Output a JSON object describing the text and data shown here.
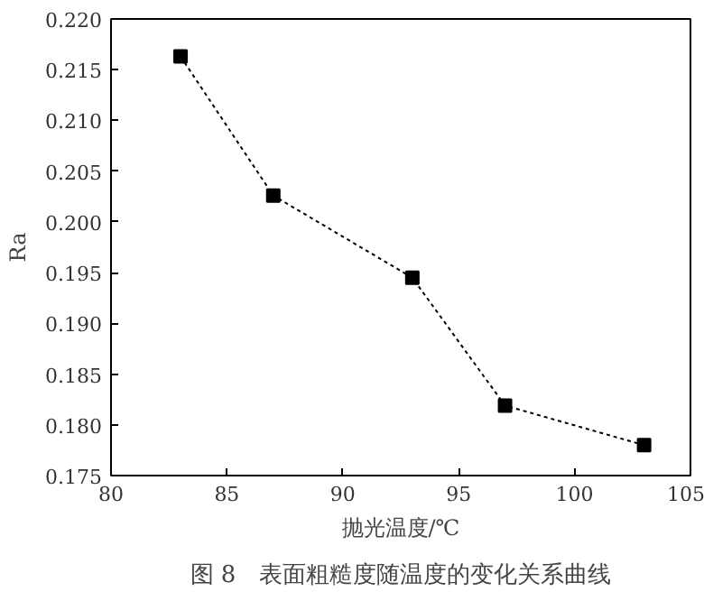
{
  "chart_data": {
    "type": "line",
    "xlabel": "抛光温度/℃",
    "ylabel": "Ra",
    "x": [
      83,
      87,
      93,
      97,
      103
    ],
    "series": [
      {
        "color": "#000000",
        "values": [
          0.2163,
          0.2026,
          0.1945,
          0.1819,
          0.178
        ]
      }
    ],
    "xlim": [
      80,
      105
    ],
    "xticks": [
      80,
      85,
      90,
      95,
      100,
      105
    ],
    "ylim": [
      0.175,
      0.22
    ],
    "yticks": [
      {
        "value": 0.175,
        "label": "0.175"
      },
      {
        "value": 0.18,
        "label": "0.180"
      },
      {
        "value": 0.185,
        "label": "0.185"
      },
      {
        "value": 0.19,
        "label": "0.190"
      },
      {
        "value": 0.195,
        "label": "0.195"
      },
      {
        "value": 0.2,
        "label": "0.200"
      },
      {
        "value": 0.205,
        "label": "0.205"
      },
      {
        "value": 0.21,
        "label": "0.210"
      },
      {
        "value": 0.215,
        "label": "0.215"
      },
      {
        "value": 0.22,
        "label": "0.220"
      }
    ],
    "marker": "square",
    "line_style": "dotted",
    "grid": false,
    "annotations": [
      "图 8　表面粗糙度随温度的变化关系曲线"
    ]
  }
}
